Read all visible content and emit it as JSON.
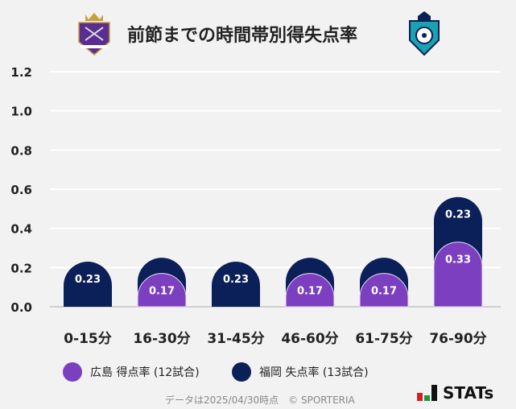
{
  "title": "前節までの時間帯別得失点率",
  "chart_data": {
    "type": "bar",
    "stacked": true,
    "categories": [
      "0-15分",
      "16-30分",
      "31-45分",
      "46-60分",
      "61-75分",
      "76-90分"
    ],
    "series": [
      {
        "name": "広島 得点率 (12試合)",
        "color": "#7b3fc0",
        "values": [
          0,
          0.17,
          0,
          0.17,
          0.17,
          0.33
        ],
        "labels": [
          "",
          "0.17",
          "",
          "0.17",
          "0.17",
          "0.33"
        ]
      },
      {
        "name": "福岡 失点率 (13試合)",
        "color": "#0b2058",
        "values": [
          0.23,
          0.08,
          0.23,
          0.08,
          0.08,
          0.23
        ],
        "labels": [
          "0.23",
          "",
          "0.23",
          "",
          "",
          "0.23"
        ]
      }
    ],
    "ylim": [
      0,
      1.2
    ],
    "yticks": [
      "0.0",
      "0.2",
      "0.4",
      "0.6",
      "0.8",
      "1.0",
      "1.2"
    ],
    "grid": true,
    "legend": "bottom"
  },
  "footer": "データは2025/04/30時点　© SPORTERIA",
  "brand": "STATs"
}
